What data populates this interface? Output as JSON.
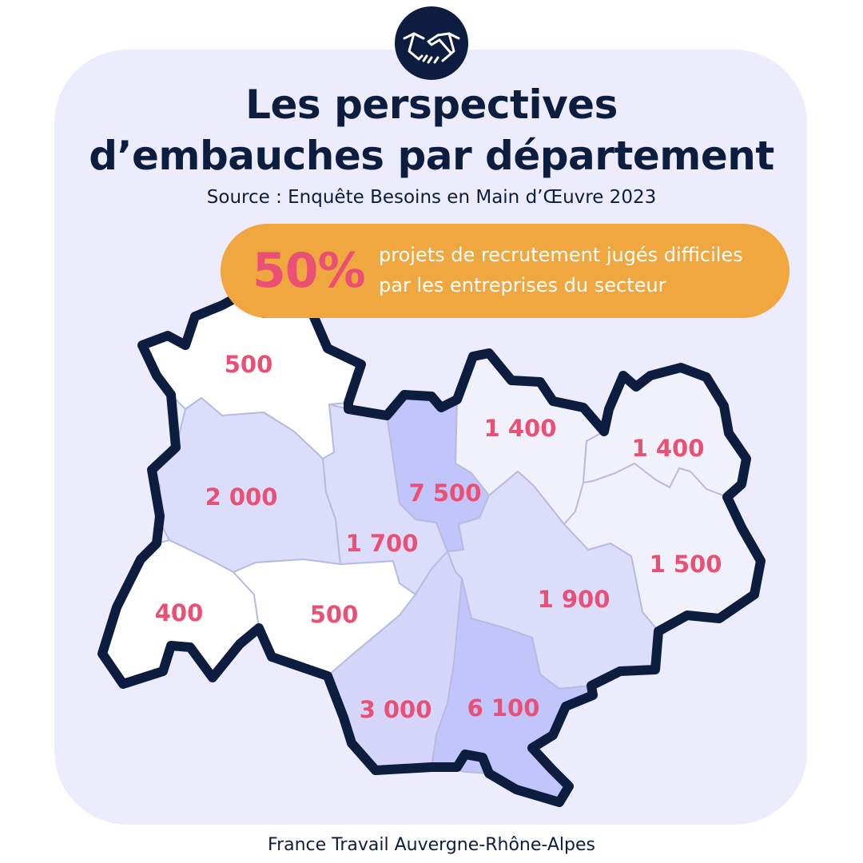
{
  "header": {
    "title_line1": "Les perspectives",
    "title_line2": "d’embauches par département",
    "source": "Source : Enquête Besoins en Main d’Œuvre 2023",
    "badge_icon": "handshake-icon"
  },
  "highlight": {
    "percent": "50%",
    "line1": "projets de recrutement jugés difficiles",
    "line2": "par les entreprises du secteur"
  },
  "map": {
    "departments": [
      {
        "id": "allier",
        "value": "500"
      },
      {
        "id": "puy-de-dome",
        "value": "2 000"
      },
      {
        "id": "cantal",
        "value": "400"
      },
      {
        "id": "haute-loire",
        "value": "500"
      },
      {
        "id": "loire",
        "value": "1 700"
      },
      {
        "id": "rhone",
        "value": "7 500"
      },
      {
        "id": "ain",
        "value": "1 400"
      },
      {
        "id": "haute-savoie",
        "value": "1 400"
      },
      {
        "id": "savoie",
        "value": "1 500"
      },
      {
        "id": "isere",
        "value": "1 900"
      },
      {
        "id": "ardeche",
        "value": "3 000"
      },
      {
        "id": "drome",
        "value": "6 100"
      }
    ],
    "colors": {
      "outline": "#0d1d3f",
      "value": "#ea4f74",
      "shade_white": "#ffffff",
      "shade_light": "#f1f1fc",
      "shade_mid": "#dcdcfb",
      "shade_strong": "#c2c5fb"
    }
  },
  "footer": {
    "text": "France Travail Auvergne-Rhône-Alpes"
  }
}
